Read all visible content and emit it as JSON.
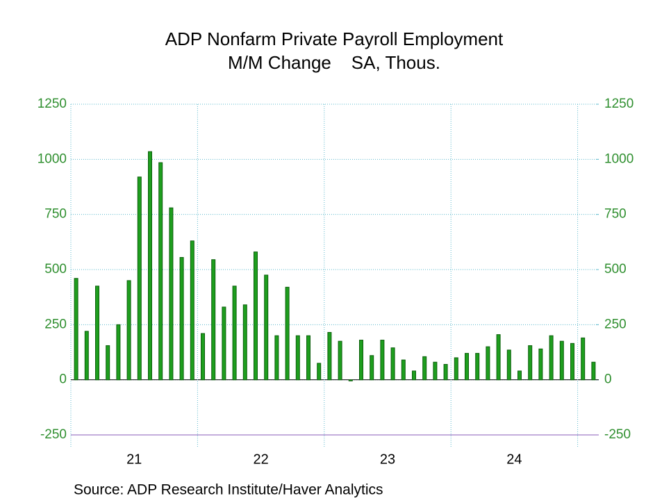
{
  "chart_data": {
    "type": "bar",
    "title": "ADP Nonfarm Private Payroll Employment",
    "subtitle": "M/M Change    SA, Thous.",
    "source": "Source:  ADP Research Institute/Haver Analytics",
    "categories": [
      null,
      null,
      null,
      null,
      null,
      null,
      "21",
      null,
      null,
      null,
      null,
      null,
      null,
      null,
      null,
      null,
      null,
      null,
      "22",
      null,
      null,
      null,
      null,
      null,
      null,
      null,
      null,
      null,
      null,
      null,
      "23",
      null,
      null,
      null,
      null,
      null,
      null,
      null,
      null,
      null,
      null,
      null,
      "24",
      null,
      null,
      null,
      null,
      null,
      null,
      null
    ],
    "values": [
      460,
      220,
      425,
      155,
      250,
      450,
      920,
      1035,
      985,
      780,
      555,
      630,
      210,
      545,
      330,
      425,
      340,
      580,
      475,
      200,
      420,
      200,
      200,
      75,
      215,
      175,
      -5,
      180,
      110,
      180,
      145,
      90,
      40,
      105,
      80,
      70,
      100,
      120,
      120,
      150,
      205,
      135,
      40,
      155,
      140,
      200,
      175,
      165,
      190,
      80
    ],
    "color": "#1e9e1e",
    "ylim": [
      -250,
      1250
    ],
    "yticks": [
      -250,
      0,
      250,
      500,
      750,
      1000,
      1250
    ],
    "y2lim": [
      -250,
      1250
    ],
    "y2ticks": [
      -250,
      0,
      250,
      500,
      750,
      1000,
      1250
    ],
    "grid": true
  }
}
